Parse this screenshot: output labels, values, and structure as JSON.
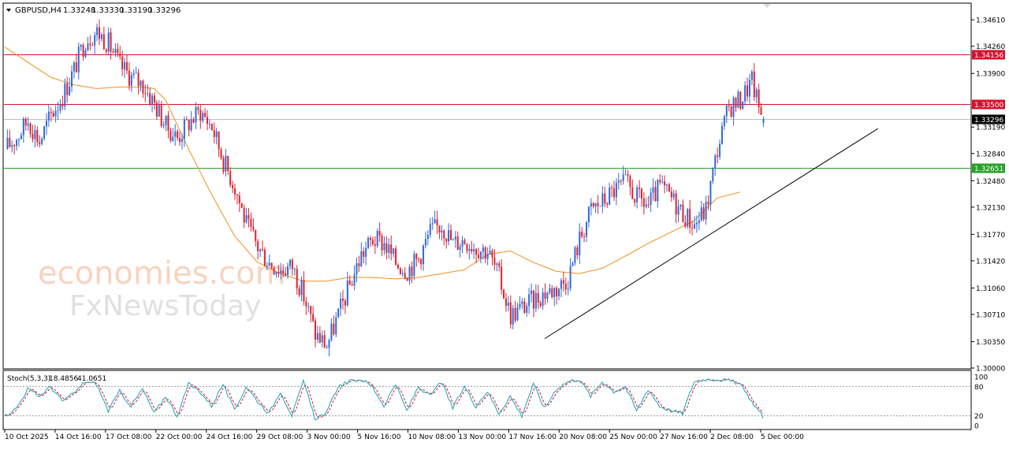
{
  "chart_data": {
    "type": "candlestick",
    "header": {
      "symbol": "GBPUSD,H4",
      "open": "1.33248",
      "high": "1.33330",
      "low": "1.33190",
      "close": "1.33296"
    },
    "price_axis": {
      "ticks": [
        "1.34610",
        "1.34260",
        "1.33900",
        "1.33190",
        "1.32840",
        "1.32480",
        "1.32130",
        "1.31770",
        "1.31420",
        "1.31060",
        "1.30710",
        "1.30350",
        "1.30000"
      ],
      "range": [
        1.3,
        1.3482
      ]
    },
    "levels": [
      {
        "value": 1.34156,
        "label": "1.34156",
        "color": "#d6122f",
        "kind": "resistance"
      },
      {
        "value": 1.335,
        "label": "1.33500",
        "color": "#d6122f",
        "kind": "resistance"
      },
      {
        "value": 1.33296,
        "label": "1.33296",
        "color": "#000000",
        "kind": "current-price"
      },
      {
        "value": 1.32651,
        "label": "1.32651",
        "color": "#2aa02a",
        "kind": "support"
      }
    ],
    "time_axis": [
      "10 Oct 2025",
      "14 Oct 16:00",
      "17 Oct 08:00",
      "22 Oct 00:00",
      "24 Oct 16:00",
      "29 Oct 08:00",
      "3 Nov 00:00",
      "5 Nov 16:00",
      "10 Nov 08:00",
      "13 Nov 00:00",
      "17 Nov 16:00",
      "20 Nov 08:00",
      "25 Nov 00:00",
      "27 Nov 16:00",
      "2 Dec 08:00",
      "5 Dec 00:00"
    ],
    "close_path": [
      [
        0,
        1.329
      ],
      [
        5,
        1.3305
      ],
      [
        10,
        1.3328
      ],
      [
        15,
        1.33
      ],
      [
        20,
        1.3335
      ],
      [
        25,
        1.336
      ],
      [
        30,
        1.3395
      ],
      [
        35,
        1.3435
      ],
      [
        40,
        1.3445
      ],
      [
        45,
        1.343
      ],
      [
        50,
        1.34
      ],
      [
        55,
        1.3385
      ],
      [
        60,
        1.3375
      ],
      [
        65,
        1.335
      ],
      [
        70,
        1.332
      ],
      [
        75,
        1.3305
      ],
      [
        80,
        1.3325
      ],
      [
        85,
        1.334
      ],
      [
        90,
        1.332
      ],
      [
        95,
        1.3275
      ],
      [
        100,
        1.324
      ],
      [
        105,
        1.319
      ],
      [
        110,
        1.316
      ],
      [
        115,
        1.314
      ],
      [
        120,
        1.313
      ],
      [
        125,
        1.3135
      ],
      [
        130,
        1.3095
      ],
      [
        135,
        1.3045
      ],
      [
        140,
        1.303
      ],
      [
        145,
        1.307
      ],
      [
        150,
        1.311
      ],
      [
        155,
        1.315
      ],
      [
        160,
        1.317
      ],
      [
        165,
        1.3165
      ],
      [
        170,
        1.314
      ],
      [
        175,
        1.313
      ],
      [
        180,
        1.3145
      ],
      [
        185,
        1.318
      ],
      [
        190,
        1.319
      ],
      [
        195,
        1.3165
      ],
      [
        200,
        1.317
      ],
      [
        205,
        1.316
      ],
      [
        210,
        1.3155
      ],
      [
        215,
        1.312
      ],
      [
        220,
        1.307
      ],
      [
        225,
        1.308
      ],
      [
        230,
        1.309
      ],
      [
        235,
        1.31
      ],
      [
        240,
        1.3105
      ],
      [
        245,
        1.312
      ],
      [
        250,
        1.317
      ],
      [
        255,
        1.321
      ],
      [
        260,
        1.322
      ],
      [
        265,
        1.3235
      ],
      [
        270,
        1.3245
      ],
      [
        275,
        1.3225
      ],
      [
        280,
        1.3215
      ],
      [
        285,
        1.324
      ],
      [
        290,
        1.3225
      ],
      [
        295,
        1.3205
      ],
      [
        300,
        1.319
      ],
      [
        305,
        1.321
      ],
      [
        310,
        1.329
      ],
      [
        315,
        1.3345
      ],
      [
        320,
        1.3355
      ],
      [
        325,
        1.338
      ],
      [
        328,
        1.3345
      ],
      [
        330,
        1.333
      ]
    ],
    "ma_path": [
      [
        0,
        1.3425
      ],
      [
        10,
        1.3405
      ],
      [
        20,
        1.3385
      ],
      [
        30,
        1.3375
      ],
      [
        40,
        1.337
      ],
      [
        50,
        1.3372
      ],
      [
        60,
        1.3372
      ],
      [
        65,
        1.337
      ],
      [
        70,
        1.3355
      ],
      [
        80,
        1.329
      ],
      [
        90,
        1.323
      ],
      [
        100,
        1.3175
      ],
      [
        110,
        1.314
      ],
      [
        120,
        1.3125
      ],
      [
        130,
        1.3115
      ],
      [
        140,
        1.3115
      ],
      [
        150,
        1.312
      ],
      [
        160,
        1.312
      ],
      [
        170,
        1.3118
      ],
      [
        180,
        1.312
      ],
      [
        190,
        1.3125
      ],
      [
        200,
        1.313
      ],
      [
        210,
        1.315
      ],
      [
        220,
        1.3155
      ],
      [
        230,
        1.314
      ],
      [
        240,
        1.3128
      ],
      [
        250,
        1.3125
      ],
      [
        260,
        1.3132
      ],
      [
        270,
        1.3148
      ],
      [
        280,
        1.3165
      ],
      [
        290,
        1.318
      ],
      [
        300,
        1.3195
      ],
      [
        310,
        1.3225
      ],
      [
        320,
        1.3233
      ]
    ],
    "trendline": [
      [
        235,
        1.3039
      ],
      [
        380,
        1.3317
      ]
    ],
    "stochastic": {
      "label": "Stoch(5,3,3)",
      "k_value": "18.4856",
      "d_value": "41.0651",
      "axis_ticks": [
        "100",
        "80",
        "20",
        "0"
      ],
      "levels": [
        80,
        20
      ],
      "k_points": [
        [
          0,
          20
        ],
        [
          5,
          35
        ],
        [
          10,
          75
        ],
        [
          15,
          60
        ],
        [
          20,
          80
        ],
        [
          25,
          50
        ],
        [
          30,
          65
        ],
        [
          35,
          90
        ],
        [
          40,
          85
        ],
        [
          45,
          30
        ],
        [
          50,
          70
        ],
        [
          55,
          40
        ],
        [
          60,
          75
        ],
        [
          65,
          25
        ],
        [
          70,
          60
        ],
        [
          75,
          20
        ],
        [
          80,
          85
        ],
        [
          85,
          70
        ],
        [
          90,
          40
        ],
        [
          95,
          85
        ],
        [
          100,
          30
        ],
        [
          105,
          80
        ],
        [
          110,
          50
        ],
        [
          115,
          25
        ],
        [
          120,
          70
        ],
        [
          125,
          20
        ],
        [
          130,
          90
        ],
        [
          135,
          15
        ],
        [
          140,
          25
        ],
        [
          145,
          80
        ],
        [
          150,
          90
        ],
        [
          155,
          95
        ],
        [
          160,
          80
        ],
        [
          165,
          40
        ],
        [
          170,
          85
        ],
        [
          175,
          30
        ],
        [
          180,
          80
        ],
        [
          185,
          60
        ],
        [
          190,
          90
        ],
        [
          195,
          35
        ],
        [
          200,
          80
        ],
        [
          205,
          40
        ],
        [
          210,
          70
        ],
        [
          215,
          25
        ],
        [
          220,
          60
        ],
        [
          225,
          20
        ],
        [
          230,
          85
        ],
        [
          235,
          35
        ],
        [
          240,
          75
        ],
        [
          245,
          90
        ],
        [
          250,
          95
        ],
        [
          255,
          60
        ],
        [
          260,
          90
        ],
        [
          265,
          70
        ],
        [
          270,
          80
        ],
        [
          275,
          30
        ],
        [
          280,
          75
        ],
        [
          285,
          40
        ],
        [
          290,
          30
        ],
        [
          295,
          25
        ],
        [
          300,
          90
        ],
        [
          305,
          95
        ],
        [
          310,
          95
        ],
        [
          315,
          92
        ],
        [
          320,
          85
        ],
        [
          325,
          50
        ],
        [
          330,
          18
        ]
      ],
      "k_color": "#1aa1b0",
      "d_color": "#d6122f"
    },
    "colors": {
      "up": "#2f6bd8",
      "down": "#e0202f",
      "ma": "#f0901e",
      "trendline": "#000000",
      "grid": "#e6e6e6"
    }
  },
  "watermark": {
    "brand_line1": "economies.com",
    "brand_line2": "FxNewsToday"
  }
}
